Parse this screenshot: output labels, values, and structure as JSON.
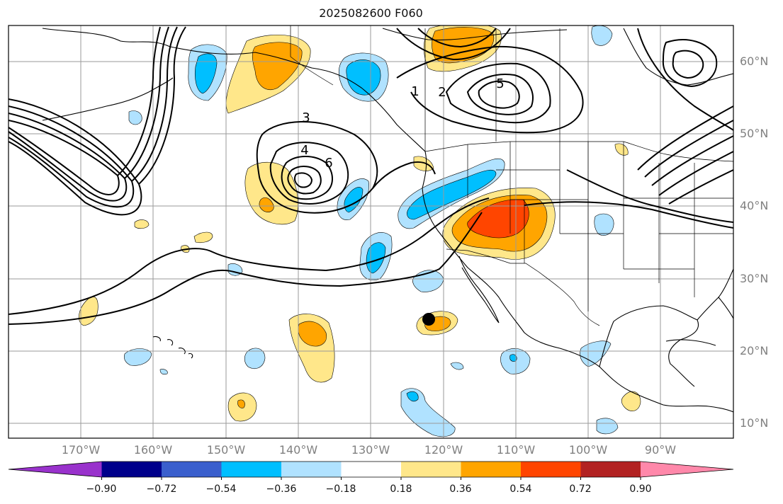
{
  "title": "2025082600 F060",
  "lat_labels": [
    "60°N",
    "50°N",
    "40°N",
    "30°N",
    "20°N",
    "10°N"
  ],
  "lon_labels": [
    "170°W",
    "160°W",
    "150°W",
    "140°W",
    "130°W",
    "120°W",
    "110°W",
    "100°W",
    "90°W"
  ],
  "contour_labels": [
    "1",
    "2",
    "3",
    "4",
    "5",
    "6"
  ],
  "colorbar": {
    "colors": [
      "#9932cc",
      "#00008b",
      "#3a5fcd",
      "#00bfff",
      "#b0e2ff",
      "#ffffff",
      "#ffe78a",
      "#ffa500",
      "#ff4500",
      "#b22222",
      "#ff88aa"
    ],
    "tick_labels": [
      "−0.90",
      "−0.72",
      "−0.54",
      "−0.36",
      "−0.18",
      "0.18",
      "0.36",
      "0.54",
      "0.72",
      "0.90"
    ]
  },
  "marker": {
    "name": "storm-center",
    "lon": -121.8,
    "lat": 24.4
  },
  "extent": {
    "lon_min": -180,
    "lon_max": -80,
    "lat_min": 8,
    "lat_max": 65
  }
}
